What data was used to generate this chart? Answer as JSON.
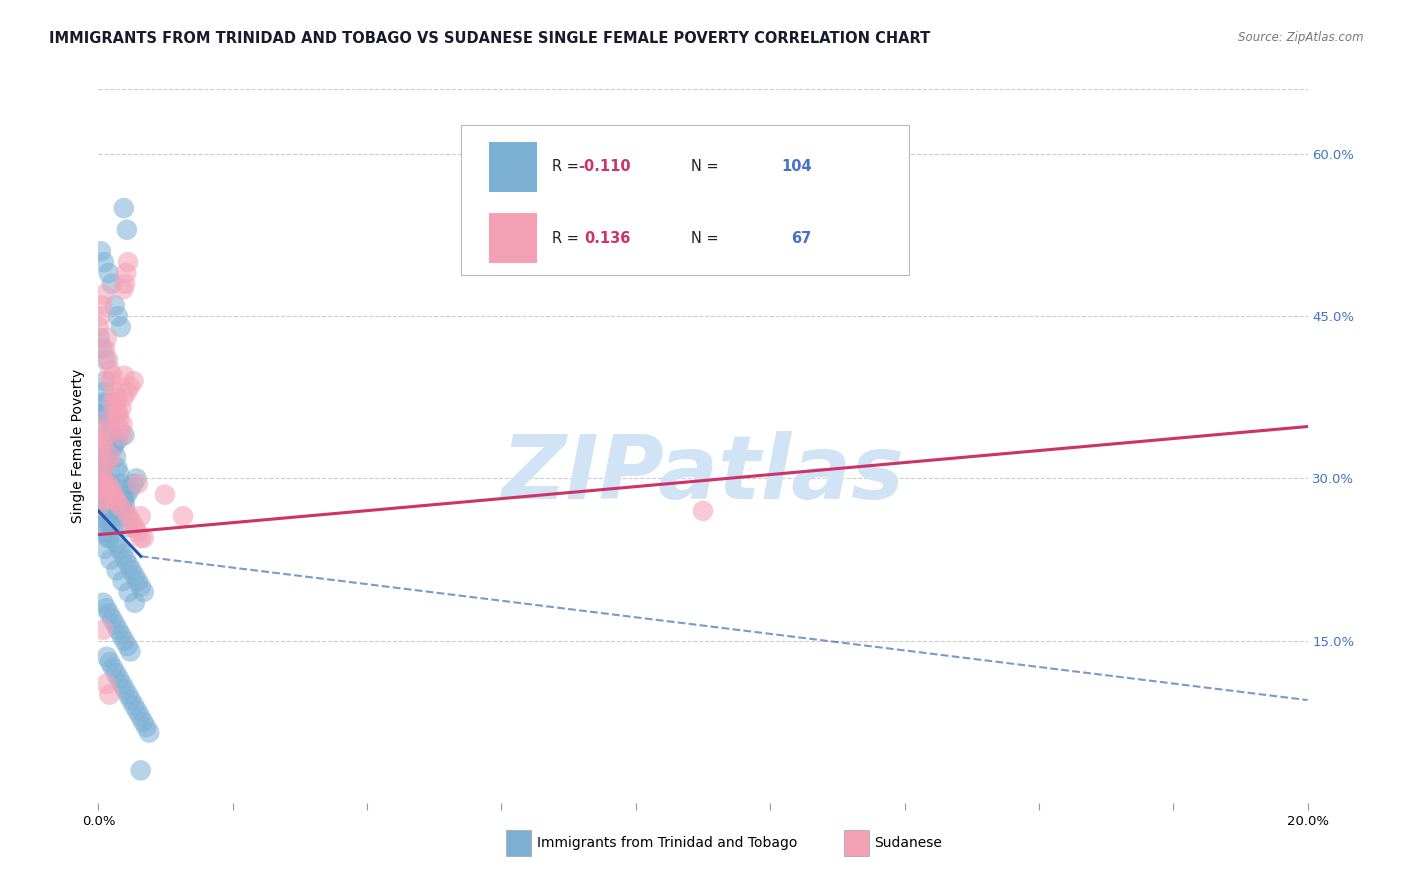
{
  "title": "IMMIGRANTS FROM TRINIDAD AND TOBAGO VS SUDANESE SINGLE FEMALE POVERTY CORRELATION CHART",
  "source": "Source: ZipAtlas.com",
  "ylabel": "Single Female Poverty",
  "y_ticks": [
    0.15,
    0.3,
    0.45,
    0.6
  ],
  "y_tick_labels": [
    "15.0%",
    "30.0%",
    "45.0%",
    "60.0%"
  ],
  "xlim": [
    0.0,
    0.2
  ],
  "ylim": [
    0.0,
    0.66
  ],
  "legend_R_blue": "-0.110",
  "legend_N_blue": "104",
  "legend_R_pink": "0.136",
  "legend_N_pink": "67",
  "legend_bottom_blue": "Immigrants from Trinidad and Tobago",
  "legend_bottom_pink": "Sudanese",
  "blue_scatter_x": [
    0.0002,
    0.0008,
    0.0005,
    0.001,
    0.0015,
    0.0003,
    0.0012,
    0.0007,
    0.0018,
    0.0004,
    0.002,
    0.0009,
    0.0025,
    0.0016,
    0.0006,
    0.003,
    0.0022,
    0.0013,
    0.0035,
    0.0011,
    0.004,
    0.0028,
    0.0017,
    0.0045,
    0.0033,
    0.005,
    0.0038,
    0.0023,
    0.0055,
    0.0042,
    0.006,
    0.0047,
    0.0031,
    0.0065,
    0.0052,
    0.007,
    0.0058,
    0.0043,
    0.0075,
    0.0063,
    0.0001,
    0.0003,
    0.0006,
    0.0009,
    0.0011,
    0.0014,
    0.0016,
    0.0019,
    0.0021,
    0.0024,
    0.0026,
    0.0029,
    0.0031,
    0.0034,
    0.0036,
    0.0039,
    0.0041,
    0.0044,
    0.0046,
    0.0049,
    0.0008,
    0.0013,
    0.0018,
    0.0023,
    0.0028,
    0.0033,
    0.0038,
    0.0043,
    0.0048,
    0.0053,
    0.0002,
    0.0007,
    0.0012,
    0.0017,
    0.0022,
    0.0027,
    0.0032,
    0.0037,
    0.0042,
    0.0047,
    0.0004,
    0.0009,
    0.0014,
    0.0019,
    0.0024,
    0.0029,
    0.0034,
    0.0039,
    0.0044,
    0.0049,
    0.0054,
    0.0059,
    0.0064,
    0.0069,
    0.0074,
    0.0079,
    0.0084,
    0.001,
    0.002,
    0.003,
    0.004,
    0.005,
    0.006,
    0.007
  ],
  "blue_scatter_y": [
    0.265,
    0.27,
    0.255,
    0.275,
    0.26,
    0.28,
    0.25,
    0.285,
    0.245,
    0.29,
    0.295,
    0.3,
    0.255,
    0.245,
    0.31,
    0.24,
    0.26,
    0.315,
    0.235,
    0.32,
    0.23,
    0.265,
    0.325,
    0.225,
    0.27,
    0.22,
    0.275,
    0.33,
    0.215,
    0.28,
    0.21,
    0.285,
    0.335,
    0.205,
    0.29,
    0.2,
    0.295,
    0.34,
    0.195,
    0.3,
    0.35,
    0.36,
    0.37,
    0.38,
    0.39,
    0.37,
    0.36,
    0.355,
    0.345,
    0.34,
    0.33,
    0.32,
    0.31,
    0.305,
    0.295,
    0.29,
    0.28,
    0.275,
    0.265,
    0.255,
    0.185,
    0.18,
    0.175,
    0.17,
    0.165,
    0.16,
    0.155,
    0.15,
    0.145,
    0.14,
    0.43,
    0.42,
    0.41,
    0.49,
    0.48,
    0.46,
    0.45,
    0.44,
    0.55,
    0.53,
    0.51,
    0.5,
    0.135,
    0.13,
    0.125,
    0.12,
    0.115,
    0.11,
    0.105,
    0.1,
    0.095,
    0.09,
    0.085,
    0.08,
    0.075,
    0.07,
    0.065,
    0.235,
    0.225,
    0.215,
    0.205,
    0.195,
    0.185,
    0.03
  ],
  "pink_scatter_x": [
    0.0002,
    0.0008,
    0.0005,
    0.001,
    0.0015,
    0.0003,
    0.0012,
    0.0007,
    0.0018,
    0.0004,
    0.002,
    0.0009,
    0.0025,
    0.0016,
    0.0006,
    0.003,
    0.0022,
    0.0013,
    0.0035,
    0.0011,
    0.004,
    0.0028,
    0.0017,
    0.0045,
    0.0033,
    0.005,
    0.0038,
    0.0023,
    0.0055,
    0.0042,
    0.006,
    0.0047,
    0.0031,
    0.0065,
    0.0052,
    0.007,
    0.0058,
    0.0043,
    0.014,
    0.011,
    0.0001,
    0.0003,
    0.0006,
    0.0009,
    0.0011,
    0.0014,
    0.0016,
    0.0019,
    0.0021,
    0.0024,
    0.0026,
    0.0029,
    0.0031,
    0.0034,
    0.0036,
    0.0039,
    0.0041,
    0.0044,
    0.0046,
    0.0049,
    0.0008,
    0.0013,
    0.0018,
    0.0065,
    0.007,
    0.0075,
    0.1
  ],
  "pink_scatter_y": [
    0.275,
    0.31,
    0.295,
    0.28,
    0.315,
    0.325,
    0.29,
    0.3,
    0.285,
    0.295,
    0.32,
    0.33,
    0.285,
    0.295,
    0.335,
    0.28,
    0.29,
    0.34,
    0.275,
    0.345,
    0.35,
    0.28,
    0.355,
    0.27,
    0.36,
    0.265,
    0.365,
    0.37,
    0.26,
    0.375,
    0.255,
    0.38,
    0.375,
    0.25,
    0.385,
    0.245,
    0.39,
    0.395,
    0.265,
    0.285,
    0.44,
    0.45,
    0.46,
    0.47,
    0.42,
    0.43,
    0.41,
    0.4,
    0.39,
    0.395,
    0.38,
    0.37,
    0.36,
    0.355,
    0.345,
    0.34,
    0.475,
    0.48,
    0.49,
    0.5,
    0.16,
    0.11,
    0.1,
    0.295,
    0.265,
    0.245,
    0.27
  ],
  "blue_line": {
    "x": [
      0.0,
      0.007
    ],
    "y": [
      0.27,
      0.228
    ]
  },
  "blue_dash": {
    "x": [
      0.007,
      0.2
    ],
    "y": [
      0.228,
      0.095
    ]
  },
  "pink_line": {
    "x": [
      0.0,
      0.2
    ],
    "y": [
      0.248,
      0.348
    ]
  },
  "blue_scatter_color": "#7bafd4",
  "pink_scatter_color": "#f4a0b5",
  "blue_line_color": "#2255aa",
  "pink_line_color": "#cc3366",
  "right_tick_color": "#4472c4",
  "watermark_text": "ZIPatlas",
  "watermark_color": "#d0e4f5",
  "grid_color": "#cccccc",
  "background_color": "#ffffff",
  "title_color": "#1a1a2e",
  "source_color": "#777777"
}
